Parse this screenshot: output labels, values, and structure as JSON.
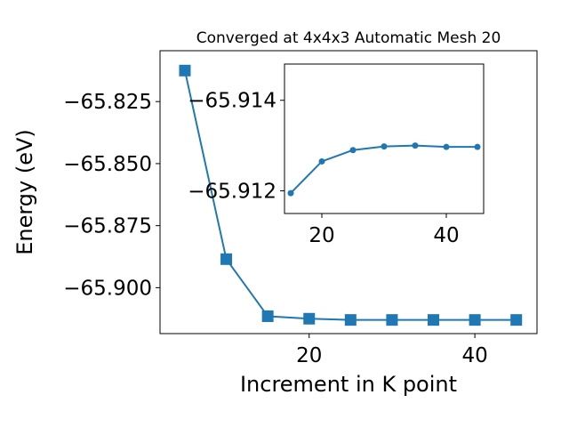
{
  "chart_data": [
    {
      "type": "line",
      "title": "Converged at 4x4x3 Automatic Mesh 20",
      "xlabel": "Increment in K point",
      "ylabel": "Energy (eV)",
      "xlim": [
        2.0,
        47.5
      ],
      "ylim": [
        -65.9185,
        -65.8045
      ],
      "xticks": [
        20,
        40
      ],
      "xtick_labels": [
        "20",
        "40"
      ],
      "yticks": [
        -65.825,
        -65.85,
        -65.875,
        -65.9
      ],
      "ytick_labels": [
        "−65.825",
        "−65.850",
        "−65.875",
        "−65.900"
      ],
      "grid": false,
      "series": [
        {
          "marker": "square",
          "color": "#1f77b4",
          "x": [
            5,
            10,
            15,
            20,
            25,
            30,
            35,
            40,
            45
          ],
          "y": [
            -65.8125,
            -65.8885,
            -65.9115,
            -65.9125,
            -65.913,
            -65.913,
            -65.913,
            -65.913,
            -65.913
          ]
        }
      ]
    },
    {
      "type": "line",
      "inset": true,
      "title": "",
      "xlabel": "",
      "ylabel": "",
      "xlim": [
        14.0,
        46.0
      ],
      "ylim": [
        -65.9115,
        -65.9148
      ],
      "xticks": [
        20,
        40
      ],
      "xtick_labels": [
        "20",
        "40"
      ],
      "yticks": [
        -65.914,
        -65.912
      ],
      "ytick_labels": [
        "−65.914",
        "−65.912"
      ],
      "grid": false,
      "series": [
        {
          "marker": "circle",
          "color": "#1f77b4",
          "x": [
            15,
            20,
            25,
            30,
            35,
            40,
            45
          ],
          "y": [
            -65.91195,
            -65.91265,
            -65.9129,
            -65.91298,
            -65.913,
            -65.91297,
            -65.91297
          ]
        }
      ]
    }
  ]
}
